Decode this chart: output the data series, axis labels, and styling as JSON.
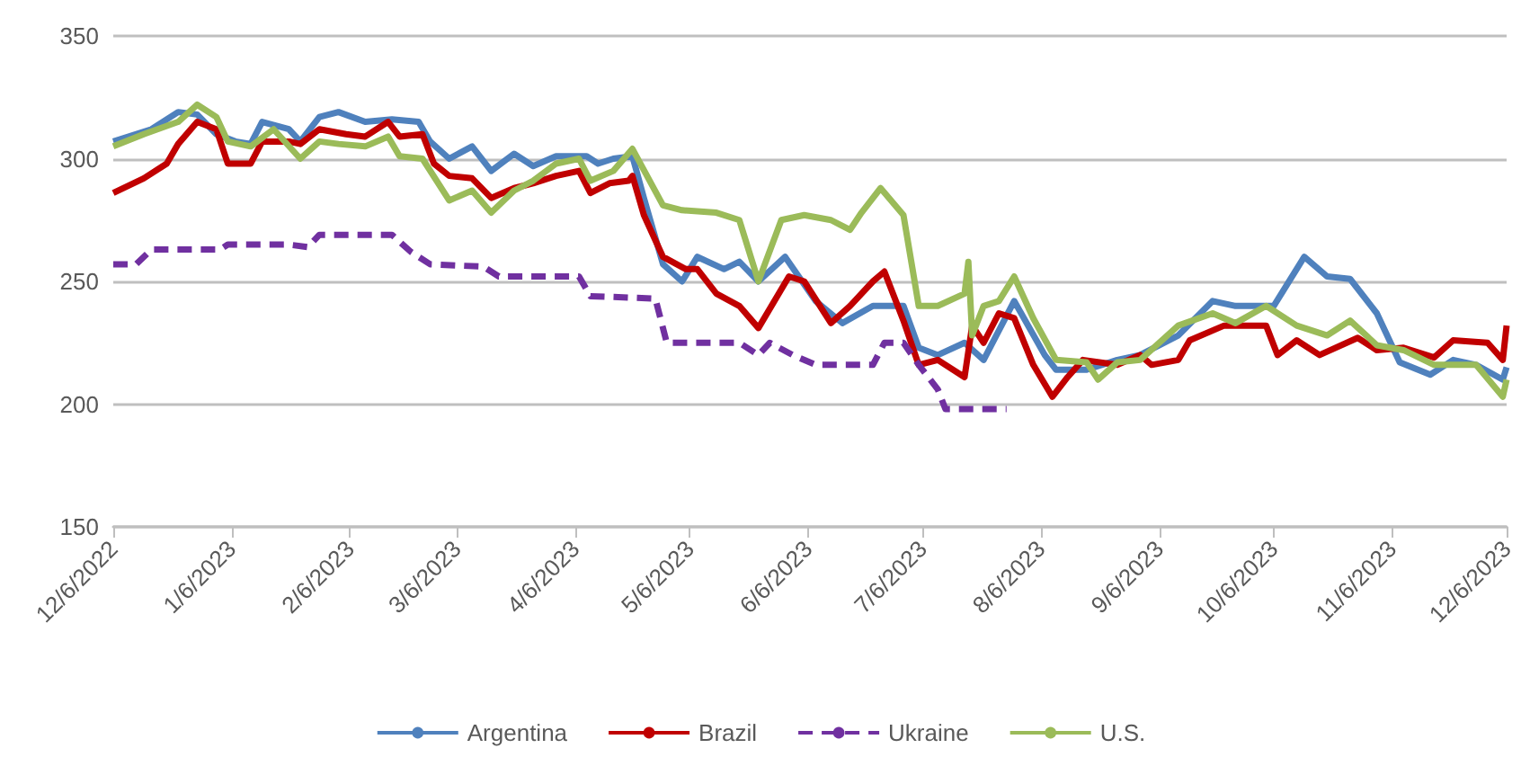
{
  "chart_data": {
    "type": "line",
    "xlim": [
      "2022-12-06",
      "2023-12-06"
    ],
    "xticks": [
      {
        "value": "2022-12-06",
        "label": "12/6/2022"
      },
      {
        "value": "2023-01-06",
        "label": "1/6/2023"
      },
      {
        "value": "2023-02-06",
        "label": "2/6/2023"
      },
      {
        "value": "2023-03-06",
        "label": "3/6/2023"
      },
      {
        "value": "2023-04-06",
        "label": "4/6/2023"
      },
      {
        "value": "2023-05-06",
        "label": "5/6/2023"
      },
      {
        "value": "2023-06-06",
        "label": "6/6/2023"
      },
      {
        "value": "2023-07-06",
        "label": "7/6/2023"
      },
      {
        "value": "2023-08-06",
        "label": "8/6/2023"
      },
      {
        "value": "2023-09-06",
        "label": "9/6/2023"
      },
      {
        "value": "2023-10-06",
        "label": "10/6/2023"
      },
      {
        "value": "2023-11-06",
        "label": "11/6/2023"
      },
      {
        "value": "2023-12-06",
        "label": "12/6/2023"
      }
    ],
    "ylim": [
      150,
      350
    ],
    "yticks": [
      150,
      200,
      250,
      300,
      350
    ],
    "grid": "y",
    "legend": "bottom",
    "marker": "none",
    "series": [
      {
        "name": "Argentina",
        "color": "#4f81bd",
        "line_style": "solid",
        "x": [
          "2022-12-06",
          "2022-12-16",
          "2022-12-23",
          "2022-12-28",
          "2023-01-02",
          "2023-01-07",
          "2023-01-11",
          "2023-01-14",
          "2023-01-21",
          "2023-01-24",
          "2023-01-29",
          "2023-02-03",
          "2023-02-10",
          "2023-02-17",
          "2023-02-24",
          "2023-02-27",
          "2023-03-04",
          "2023-03-10",
          "2023-03-15",
          "2023-03-21",
          "2023-03-26",
          "2023-04-01",
          "2023-04-09",
          "2023-04-12",
          "2023-04-16",
          "2023-04-21",
          "2023-04-24",
          "2023-04-29",
          "2023-05-04",
          "2023-05-08",
          "2023-05-15",
          "2023-05-19",
          "2023-05-24",
          "2023-05-31",
          "2023-06-08",
          "2023-06-15",
          "2023-06-23",
          "2023-07-01",
          "2023-07-05",
          "2023-07-10",
          "2023-07-17",
          "2023-07-22",
          "2023-07-30",
          "2023-08-07",
          "2023-08-10",
          "2023-08-18",
          "2023-08-26",
          "2023-09-01",
          "2023-09-11",
          "2023-09-20",
          "2023-09-26",
          "2023-10-06",
          "2023-10-14",
          "2023-10-20",
          "2023-10-26",
          "2023-11-02",
          "2023-11-08",
          "2023-11-16",
          "2023-11-22",
          "2023-11-28",
          "2023-12-05",
          "2023-12-06"
        ],
        "values": [
          307,
          312,
          319,
          318,
          310,
          307,
          306,
          315,
          312,
          307,
          317,
          319,
          315,
          316,
          315,
          307,
          300,
          305,
          295,
          302,
          297,
          301,
          301,
          298,
          300,
          301,
          284,
          257,
          250,
          260,
          255,
          258,
          250,
          260,
          242,
          233,
          240,
          240,
          223,
          220,
          225,
          218,
          242,
          220,
          214,
          214,
          218,
          220,
          228,
          242,
          240,
          240,
          260,
          252,
          251,
          237,
          217,
          212,
          218,
          216,
          210,
          215
        ]
      },
      {
        "name": "Brazil",
        "color": "#c00000",
        "line_style": "solid",
        "x": [
          "2022-12-06",
          "2022-12-14",
          "2022-12-20",
          "2022-12-23",
          "2022-12-28",
          "2023-01-02",
          "2023-01-05",
          "2023-01-11",
          "2023-01-14",
          "2023-01-21",
          "2023-01-24",
          "2023-01-29",
          "2023-02-05",
          "2023-02-10",
          "2023-02-16",
          "2023-02-19",
          "2023-02-25",
          "2023-02-28",
          "2023-03-04",
          "2023-03-10",
          "2023-03-15",
          "2023-03-21",
          "2023-03-26",
          "2023-04-01",
          "2023-04-07",
          "2023-04-10",
          "2023-04-15",
          "2023-04-20",
          "2023-04-21",
          "2023-04-24",
          "2023-04-29",
          "2023-05-05",
          "2023-05-08",
          "2023-05-13",
          "2023-05-19",
          "2023-05-24",
          "2023-06-01",
          "2023-06-05",
          "2023-06-12",
          "2023-06-17",
          "2023-06-23",
          "2023-06-26",
          "2023-07-01",
          "2023-07-05",
          "2023-07-10",
          "2023-07-17",
          "2023-07-19",
          "2023-07-22",
          "2023-07-26",
          "2023-07-30",
          "2023-08-04",
          "2023-08-09",
          "2023-08-13",
          "2023-08-17",
          "2023-08-26",
          "2023-09-01",
          "2023-09-04",
          "2023-09-11",
          "2023-09-14",
          "2023-09-23",
          "2023-10-04",
          "2023-10-07",
          "2023-10-12",
          "2023-10-18",
          "2023-10-28",
          "2023-11-02",
          "2023-11-09",
          "2023-11-17",
          "2023-11-22",
          "2023-12-01",
          "2023-12-05",
          "2023-12-06"
        ],
        "values": [
          286,
          292,
          298,
          306,
          315,
          312,
          298,
          298,
          307,
          307,
          306,
          312,
          310,
          309,
          315,
          309,
          310,
          298,
          293,
          292,
          284,
          288,
          290,
          293,
          295,
          286,
          290,
          291,
          293,
          277,
          260,
          255,
          255,
          245,
          240,
          231,
          252,
          250,
          233,
          240,
          250,
          254,
          234,
          216,
          218,
          211,
          232,
          225,
          237,
          235,
          216,
          203,
          211,
          218,
          216,
          220,
          216,
          218,
          226,
          232,
          232,
          220,
          226,
          220,
          227,
          222,
          223,
          219,
          226,
          225,
          218,
          232
        ]
      },
      {
        "name": "Ukraine",
        "color": "#7030a0",
        "line_style": "dashed",
        "x": [
          "2022-12-06",
          "2022-12-12",
          "2022-12-16",
          "2023-01-03",
          "2023-01-05",
          "2023-01-21",
          "2023-01-26",
          "2023-01-29",
          "2023-02-17",
          "2023-02-22",
          "2023-02-27",
          "2023-03-13",
          "2023-03-17",
          "2023-04-07",
          "2023-04-10",
          "2023-04-27",
          "2023-04-30",
          "2023-05-19",
          "2023-05-24",
          "2023-05-27",
          "2023-06-02",
          "2023-06-08",
          "2023-06-23",
          "2023-06-26",
          "2023-07-01",
          "2023-07-05",
          "2023-07-10",
          "2023-07-12",
          "2023-07-28"
        ],
        "values": [
          257,
          257,
          263,
          263,
          265,
          265,
          264,
          269,
          269,
          262,
          257,
          256,
          252,
          252,
          244,
          243,
          225,
          225,
          220,
          225,
          220,
          216,
          216,
          225,
          225,
          216,
          206,
          198,
          198
        ]
      },
      {
        "name": "U.S.",
        "color": "#9bbb59",
        "line_style": "solid",
        "x": [
          "2022-12-06",
          "2022-12-14",
          "2022-12-23",
          "2022-12-28",
          "2023-01-02",
          "2023-01-05",
          "2023-01-11",
          "2023-01-17",
          "2023-01-24",
          "2023-01-29",
          "2023-02-03",
          "2023-02-10",
          "2023-02-16",
          "2023-02-19",
          "2023-02-25",
          "2023-03-04",
          "2023-03-10",
          "2023-03-15",
          "2023-03-21",
          "2023-03-26",
          "2023-04-01",
          "2023-04-07",
          "2023-04-10",
          "2023-04-16",
          "2023-04-21",
          "2023-04-29",
          "2023-05-04",
          "2023-05-13",
          "2023-05-19",
          "2023-05-24",
          "2023-05-30",
          "2023-06-05",
          "2023-06-12",
          "2023-06-17",
          "2023-06-20",
          "2023-06-25",
          "2023-07-01",
          "2023-07-05",
          "2023-07-10",
          "2023-07-17",
          "2023-07-18",
          "2023-07-19",
          "2023-07-22",
          "2023-07-26",
          "2023-07-30",
          "2023-08-04",
          "2023-08-10",
          "2023-08-18",
          "2023-08-21",
          "2023-08-26",
          "2023-09-01",
          "2023-09-11",
          "2023-09-20",
          "2023-09-26",
          "2023-10-04",
          "2023-10-12",
          "2023-10-20",
          "2023-10-26",
          "2023-11-02",
          "2023-11-09",
          "2023-11-17",
          "2023-11-28",
          "2023-12-05",
          "2023-12-06"
        ],
        "values": [
          305,
          310,
          315,
          322,
          317,
          307,
          305,
          312,
          300,
          307,
          306,
          305,
          309,
          301,
          300,
          283,
          287,
          278,
          287,
          291,
          298,
          300,
          291,
          295,
          304,
          281,
          279,
          278,
          275,
          250,
          275,
          277,
          275,
          271,
          278,
          288,
          277,
          240,
          240,
          245,
          258,
          228,
          240,
          242,
          252,
          235,
          218,
          217,
          210,
          217,
          218,
          232,
          237,
          233,
          240,
          232,
          228,
          234,
          224,
          222,
          216,
          216,
          203,
          210
        ]
      }
    ]
  }
}
